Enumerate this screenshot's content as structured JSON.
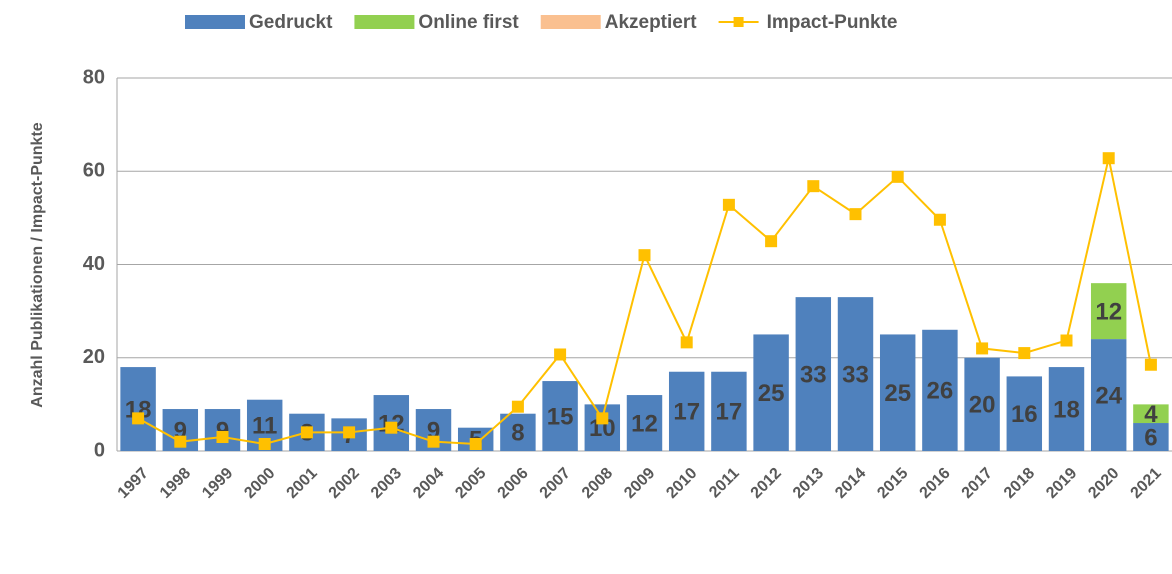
{
  "chart_data": {
    "type": "bar",
    "categories": [
      "1997",
      "1998",
      "1999",
      "2000",
      "2001",
      "2002",
      "2003",
      "2004",
      "2005",
      "2006",
      "2007",
      "2008",
      "2009",
      "2010",
      "2011",
      "2012",
      "2013",
      "2014",
      "2015",
      "2016",
      "2017",
      "2018",
      "2019",
      "2020",
      "2021"
    ],
    "series": [
      {
        "name": "Gedruckt",
        "color": "#4f81bd",
        "values": [
          18,
          9,
          9,
          11,
          8,
          7,
          12,
          9,
          5,
          8,
          15,
          10,
          12,
          17,
          17,
          25,
          33,
          33,
          25,
          26,
          20,
          16,
          18,
          24,
          6
        ]
      },
      {
        "name": "Online first",
        "color": "#92d050",
        "values": [
          null,
          null,
          null,
          null,
          null,
          null,
          null,
          null,
          null,
          null,
          null,
          null,
          null,
          null,
          null,
          null,
          null,
          null,
          null,
          null,
          null,
          null,
          null,
          12,
          4
        ]
      },
      {
        "name": "Akzeptiert",
        "color": "#fac090",
        "values": [
          null,
          null,
          null,
          null,
          null,
          null,
          null,
          null,
          null,
          null,
          null,
          null,
          null,
          null,
          null,
          null,
          null,
          null,
          null,
          null,
          null,
          null,
          null,
          null,
          null
        ]
      },
      {
        "name": "Impact-Punkte",
        "type": "line",
        "color": "#ffc000",
        "values": [
          7,
          2,
          3,
          1.5,
          4,
          4,
          5,
          2,
          1.5,
          9.5,
          20.7,
          7,
          42,
          23.3,
          52.8,
          45,
          56.8,
          50.8,
          58.8,
          49.6,
          22,
          21,
          23.7,
          62.8,
          18.5
        ]
      }
    ],
    "ylabel": "Anzahl Publikationen / Impact-Punkte",
    "ylim": [
      0,
      80
    ],
    "yticks": [
      0,
      20,
      40,
      60,
      80
    ],
    "grid": true,
    "legend": "top"
  }
}
